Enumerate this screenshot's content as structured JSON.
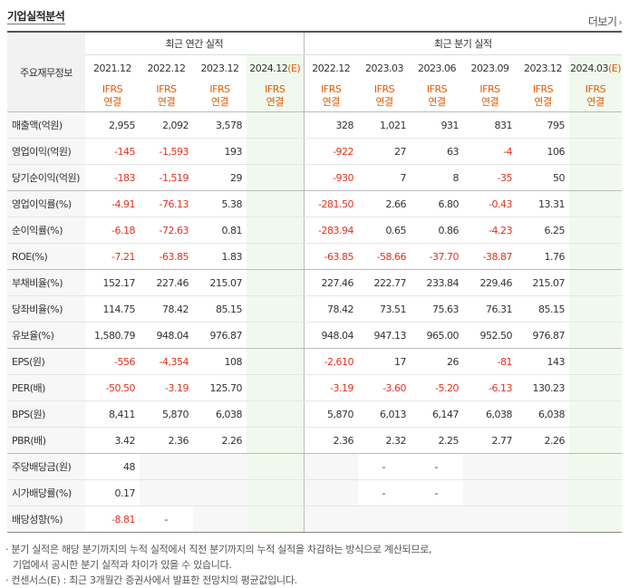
{
  "header": {
    "title": "기업실적분석",
    "more": "더보기",
    "more_arrow": "›"
  },
  "table": {
    "row_header": "주요재무정보",
    "annual_label": "최근 연간 실적",
    "quarter_label": "최근 분기 실적",
    "annual_periods": [
      "2021.12",
      "2022.12",
      "2023.12",
      "2024.12(E)"
    ],
    "quarter_periods": [
      "2022.12",
      "2023.03",
      "2023.06",
      "2023.09",
      "2023.12",
      "2024.03(E)"
    ],
    "ifrs_top": "IFRS",
    "ifrs_bottom": "연결",
    "rows": [
      {
        "label": "매출액(억원)",
        "annual": [
          "2,955",
          "2,092",
          "3,578",
          ""
        ],
        "quarter": [
          "328",
          "1,021",
          "931",
          "831",
          "795",
          ""
        ]
      },
      {
        "label": "영업이익(억원)",
        "annual": [
          "-145",
          "-1,593",
          "193",
          ""
        ],
        "quarter": [
          "-922",
          "27",
          "63",
          "-4",
          "106",
          ""
        ]
      },
      {
        "label": "당기순이익(억원)",
        "annual": [
          "-183",
          "-1,519",
          "29",
          ""
        ],
        "quarter": [
          "-930",
          "7",
          "8",
          "-35",
          "50",
          ""
        ]
      },
      {
        "label": "영업이익률(%)",
        "annual": [
          "-4.91",
          "-76.13",
          "5.38",
          ""
        ],
        "quarter": [
          "-281.50",
          "2.66",
          "6.80",
          "-0.43",
          "13.31",
          ""
        ]
      },
      {
        "label": "순이익률(%)",
        "annual": [
          "-6.18",
          "-72.63",
          "0.81",
          ""
        ],
        "quarter": [
          "-283.94",
          "0.65",
          "0.86",
          "-4.23",
          "6.25",
          ""
        ]
      },
      {
        "label": "ROE(%)",
        "annual": [
          "-7.21",
          "-63.85",
          "1.83",
          ""
        ],
        "quarter": [
          "-63.85",
          "-58.66",
          "-37.70",
          "-38.87",
          "1.76",
          ""
        ]
      },
      {
        "label": "부채비율(%)",
        "annual": [
          "152.17",
          "227.46",
          "215.07",
          ""
        ],
        "quarter": [
          "227.46",
          "222.77",
          "233.84",
          "229.46",
          "215.07",
          ""
        ]
      },
      {
        "label": "당좌비율(%)",
        "annual": [
          "114.75",
          "78.42",
          "85.15",
          ""
        ],
        "quarter": [
          "78.42",
          "73.51",
          "75.63",
          "76.31",
          "85.15",
          ""
        ]
      },
      {
        "label": "유보율(%)",
        "annual": [
          "1,580.79",
          "948.04",
          "976.87",
          ""
        ],
        "quarter": [
          "948.04",
          "947.13",
          "965.00",
          "952.50",
          "976.87",
          ""
        ]
      },
      {
        "label": "EPS(원)",
        "annual": [
          "-556",
          "-4,354",
          "108",
          ""
        ],
        "quarter": [
          "-2,610",
          "17",
          "26",
          "-81",
          "143",
          ""
        ]
      },
      {
        "label": "PER(배)",
        "annual": [
          "-50.50",
          "-3.19",
          "125.70",
          ""
        ],
        "quarter": [
          "-3.19",
          "-3.60",
          "-5.20",
          "-6.13",
          "130.23",
          ""
        ]
      },
      {
        "label": "BPS(원)",
        "annual": [
          "8,411",
          "5,870",
          "6,038",
          ""
        ],
        "quarter": [
          "5,870",
          "6,013",
          "6,147",
          "6,038",
          "6,038",
          ""
        ]
      },
      {
        "label": "PBR(배)",
        "annual": [
          "3.42",
          "2.36",
          "2.26",
          ""
        ],
        "quarter": [
          "2.36",
          "2.32",
          "2.25",
          "2.77",
          "2.26",
          ""
        ]
      },
      {
        "label": "주당배당금(원)",
        "annual": [
          "48",
          "",
          "",
          ""
        ],
        "quarter": [
          "",
          "-",
          "-",
          "",
          "",
          ""
        ]
      },
      {
        "label": "시가배당률(%)",
        "annual": [
          "0.17",
          "",
          "",
          ""
        ],
        "quarter": [
          "",
          "-",
          "-",
          "",
          "",
          ""
        ]
      },
      {
        "label": "배당성향(%)",
        "annual": [
          "-8.81",
          "-",
          "",
          ""
        ],
        "quarter": [
          "",
          "",
          "",
          "",
          "",
          ""
        ]
      }
    ]
  },
  "notes": [
    "· 분기 실적은 해당 분기까지의 누적 실적에서 직전 분기까지의 누적 실적을 차감하는 방식으로 계산되므로,",
    "  기업에서 공시한 분기 실적과 차이가 있을 수 있습니다.",
    "· 컨센서스(E) : 최근 3개월간 증권사에서 발표한 전망치의 평균값입니다."
  ]
}
